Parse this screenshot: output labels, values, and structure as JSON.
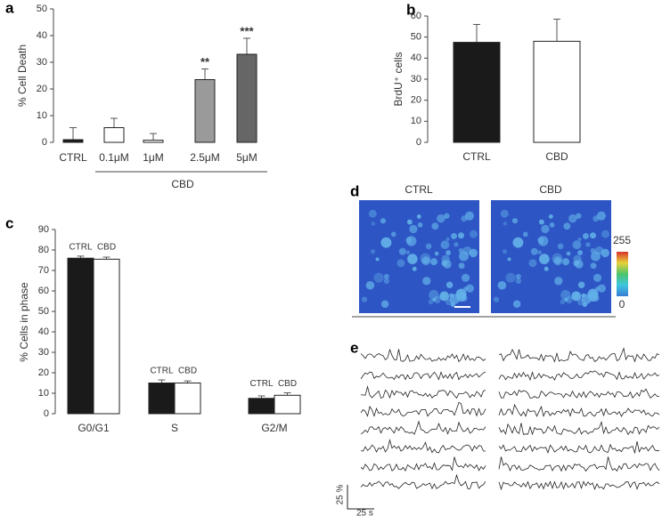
{
  "chart_data": [
    {
      "type": "bar",
      "panel": "a",
      "ylabel": "% Cell Death",
      "categories": [
        "CTRL",
        "0.1μM",
        "1μM",
        "2.5μM",
        "5μM"
      ],
      "values": [
        1,
        5.5,
        0.8,
        23.5,
        33
      ],
      "errors": [
        4.5,
        3.5,
        2.5,
        4,
        6
      ],
      "colors": [
        "#1a1a1a",
        "#ffffff",
        "#ffffff",
        "#9a9a9a",
        "#666666"
      ],
      "annotations": [
        null,
        null,
        null,
        "**",
        "***"
      ],
      "group_label": "CBD",
      "ylim": [
        0,
        50
      ],
      "yticks": [
        0,
        10,
        20,
        30,
        40,
        50
      ]
    },
    {
      "type": "bar",
      "panel": "b",
      "ylabel": "BrdU⁺ cells",
      "categories": [
        "CTRL",
        "CBD"
      ],
      "values": [
        47.5,
        48
      ],
      "errors": [
        8.5,
        10.5
      ],
      "colors": [
        "#1a1a1a",
        "#ffffff"
      ],
      "ylim": [
        0,
        60
      ],
      "yticks": [
        0,
        10,
        20,
        30,
        40,
        50,
        60
      ]
    },
    {
      "type": "grouped-bar",
      "panel": "c",
      "ylabel": "% Cells in phase",
      "categories": [
        "G0/G1",
        "S",
        "G2/M"
      ],
      "series": [
        {
          "name": "CTRL",
          "color": "#1a1a1a",
          "values": [
            76,
            15,
            7.5
          ],
          "errors": [
            1,
            1.5,
            1.2
          ]
        },
        {
          "name": "CBD",
          "color": "#ffffff",
          "values": [
            75.5,
            15,
            9
          ],
          "errors": [
            1,
            1,
            1.2
          ]
        }
      ],
      "ylim": [
        0,
        90
      ],
      "yticks": [
        0,
        10,
        20,
        30,
        40,
        50,
        60,
        70,
        80,
        90
      ]
    },
    {
      "type": "image",
      "panel": "d",
      "conditions": [
        "CTRL",
        "CBD"
      ],
      "colorbar_ticks": [
        0,
        255
      ]
    },
    {
      "type": "traces",
      "panel": "e",
      "scale_y": "25 %",
      "scale_x": "25 s"
    }
  ]
}
